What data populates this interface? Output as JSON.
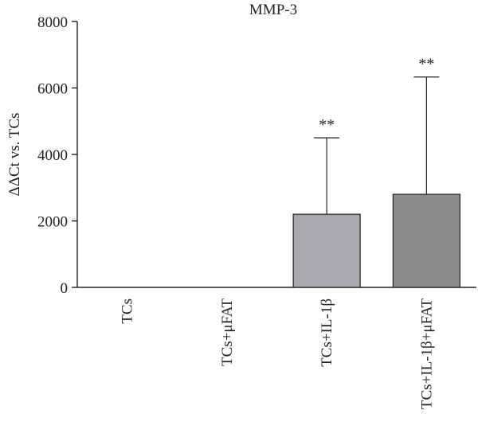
{
  "chart_data": {
    "type": "bar",
    "title": "MMP-3",
    "xlabel": "",
    "ylabel": "ΔΔCt vs. TCs",
    "ylim": [
      0,
      8000
    ],
    "yticks": [
      0,
      2000,
      4000,
      6000,
      8000
    ],
    "categories": [
      "TCs",
      "TCs+μFAT",
      "TCs+IL-1β",
      "TCs+IL-1β+μFAT"
    ],
    "values": [
      0,
      0,
      2200,
      2800
    ],
    "error_upper": [
      0,
      0,
      4500,
      6330
    ],
    "significance": [
      "",
      "",
      "**",
      "**"
    ],
    "colors": [
      "#ffffff",
      "#ffffff",
      "#a9a9ae",
      "#8c8c8c"
    ],
    "grid": false,
    "legend": "none"
  }
}
